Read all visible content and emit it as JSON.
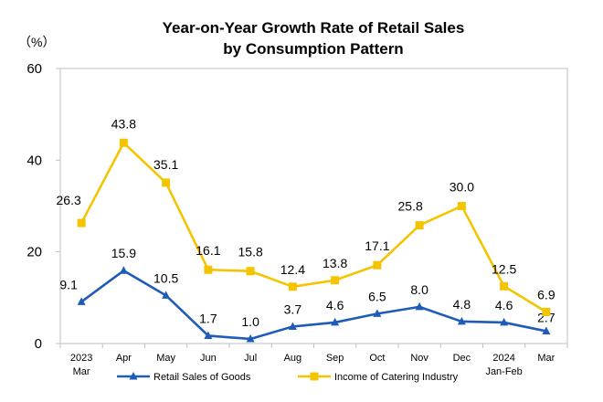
{
  "chart_data": {
    "type": "line",
    "title_line1": "Year-on-Year Growth Rate of Retail Sales",
    "title_line2": "by Consumption Pattern",
    "unit": "（%）",
    "ylim": [
      0,
      60
    ],
    "yticks": [
      "0",
      "20",
      "40",
      "60"
    ],
    "ytick_values": [
      0,
      20,
      40,
      60
    ],
    "categories": [
      [
        "2023",
        "Mar"
      ],
      [
        "Apr"
      ],
      [
        "May"
      ],
      [
        "Jun"
      ],
      [
        "Jul"
      ],
      [
        "Aug"
      ],
      [
        "Sep"
      ],
      [
        "Oct"
      ],
      [
        "Nov"
      ],
      [
        "Dec"
      ],
      [
        "2024",
        "Jan-Feb"
      ],
      [
        "Mar"
      ]
    ],
    "legend_position": "bottom",
    "series": [
      {
        "name": "Retail Sales of Goods",
        "color": "#1f5bb8",
        "marker": "triangle",
        "values": [
          9.1,
          15.9,
          10.5,
          1.7,
          1.0,
          3.7,
          4.6,
          6.5,
          8.0,
          4.8,
          4.6,
          2.7
        ],
        "labels": [
          "9.1",
          "15.9",
          "10.5",
          "1.7",
          "1.0",
          "3.7",
          "4.6",
          "6.5",
          "8.0",
          "4.8",
          "4.6",
          "2.7"
        ]
      },
      {
        "name": "Income of Catering Industry",
        "color": "#f5c400",
        "marker": "square",
        "values": [
          26.3,
          43.8,
          35.1,
          16.1,
          15.8,
          12.4,
          13.8,
          17.1,
          25.8,
          30.0,
          12.5,
          6.9
        ],
        "labels": [
          "26.3",
          "43.8",
          "35.1",
          "16.1",
          "15.8",
          "12.4",
          "13.8",
          "17.1",
          "25.8",
          "30.0",
          "12.5",
          "6.9"
        ]
      }
    ]
  }
}
